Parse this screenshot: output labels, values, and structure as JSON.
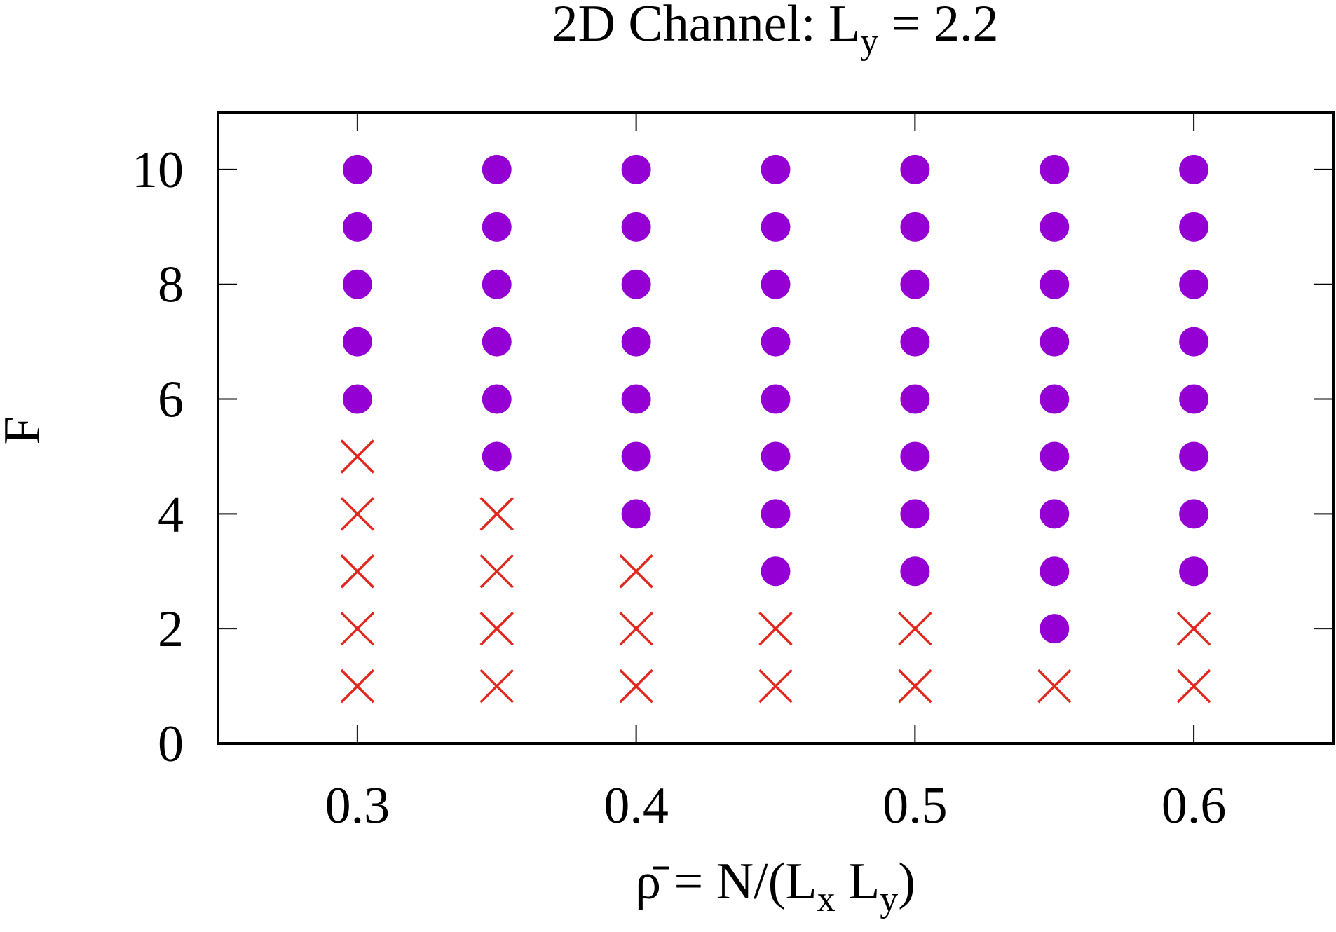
{
  "chart_data": {
    "type": "scatter",
    "title_parts": [
      {
        "text": "2D Channel:  L"
      },
      {
        "text": "y",
        "sub": true
      },
      {
        "text": " = 2.2"
      }
    ],
    "xlabel_parts": [
      {
        "text": "ρ̄ = N/(L"
      },
      {
        "text": "x",
        "sub": true
      },
      {
        "text": " L"
      },
      {
        "text": "y",
        "sub": true
      },
      {
        "text": ")"
      }
    ],
    "ylabel": "F",
    "xlim": [
      0.25,
      0.65
    ],
    "ylim": [
      0,
      11
    ],
    "xticks": [
      0.3,
      0.4,
      0.5,
      0.6
    ],
    "yticks": [
      0,
      2,
      4,
      6,
      8,
      10
    ],
    "series": [
      {
        "marker": "circle",
        "color": "#9400d3",
        "x": [
          0.3,
          0.3,
          0.3,
          0.3,
          0.3,
          0.35,
          0.35,
          0.35,
          0.35,
          0.35,
          0.35,
          0.4,
          0.4,
          0.4,
          0.4,
          0.4,
          0.4,
          0.4,
          0.45,
          0.45,
          0.45,
          0.45,
          0.45,
          0.45,
          0.45,
          0.45,
          0.5,
          0.5,
          0.5,
          0.5,
          0.5,
          0.5,
          0.5,
          0.5,
          0.55,
          0.55,
          0.55,
          0.55,
          0.55,
          0.55,
          0.55,
          0.55,
          0.55,
          0.6,
          0.6,
          0.6,
          0.6,
          0.6,
          0.6,
          0.6,
          0.6
        ],
        "values": [
          6,
          7,
          8,
          9,
          10,
          5,
          6,
          7,
          8,
          9,
          10,
          4,
          5,
          6,
          7,
          8,
          9,
          10,
          3,
          4,
          5,
          6,
          7,
          8,
          9,
          10,
          3,
          4,
          5,
          6,
          7,
          8,
          9,
          10,
          2,
          3,
          4,
          5,
          6,
          7,
          8,
          9,
          10,
          3,
          4,
          5,
          6,
          7,
          8,
          9,
          10
        ]
      },
      {
        "marker": "cross",
        "color": "#e0281e",
        "x": [
          0.3,
          0.3,
          0.3,
          0.3,
          0.3,
          0.35,
          0.35,
          0.35,
          0.35,
          0.4,
          0.4,
          0.4,
          0.45,
          0.45,
          0.5,
          0.5,
          0.55,
          0.6,
          0.6
        ],
        "values": [
          1,
          2,
          3,
          4,
          5,
          1,
          2,
          3,
          4,
          1,
          2,
          3,
          1,
          2,
          1,
          2,
          1,
          1,
          2
        ]
      }
    ]
  }
}
